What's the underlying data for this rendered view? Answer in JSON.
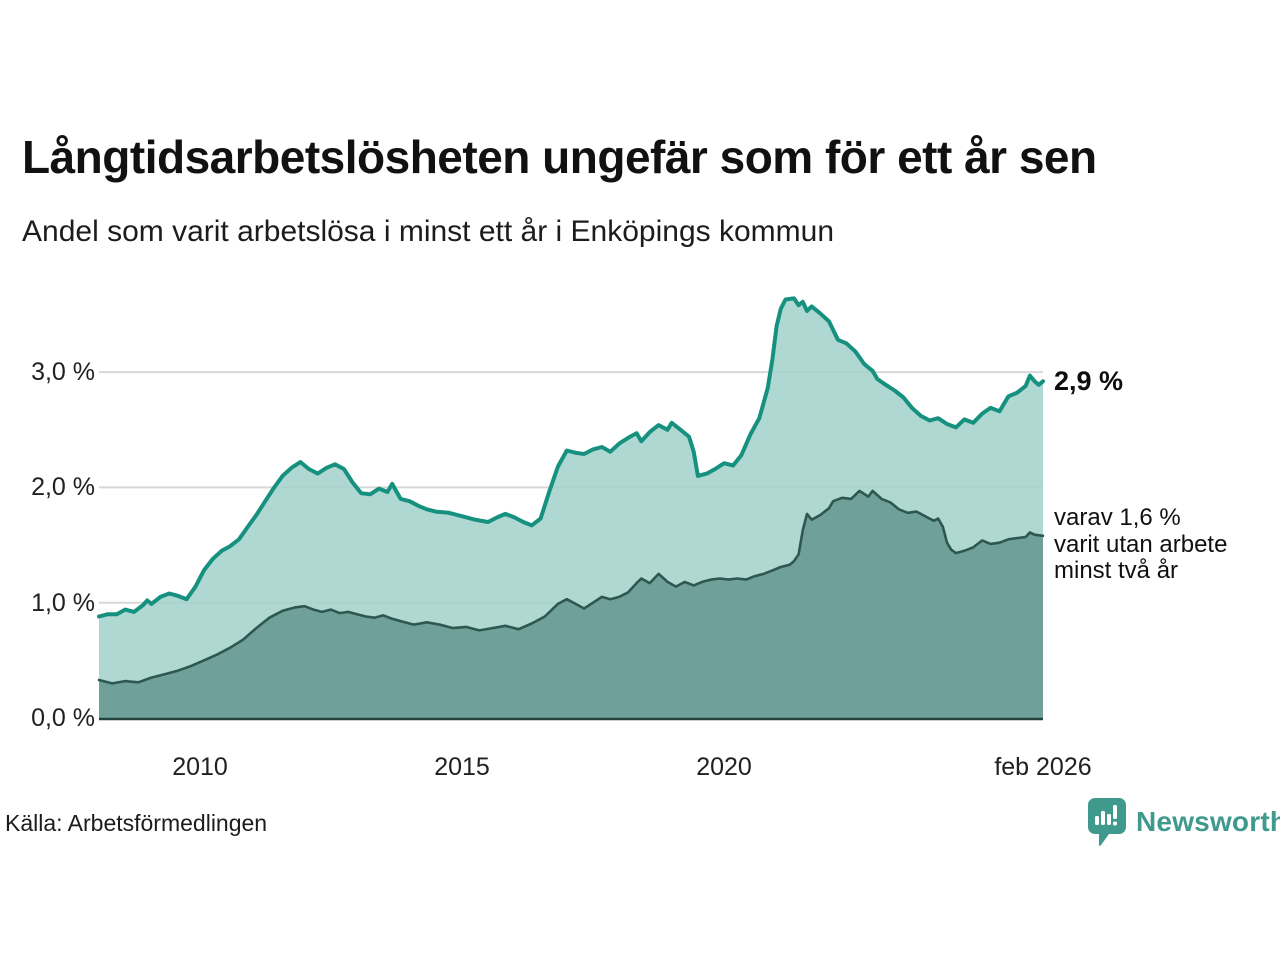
{
  "header": {
    "title": "Långtidsarbetslösheten ungefär som för ett år sen",
    "subtitle": "Andel som varit arbetslösa i minst ett år i Enköpings kommun"
  },
  "annotations": {
    "latest_value": "2,9 %",
    "two_year_note": "varav 1,6 %\nvarit utan arbete\nminst två år"
  },
  "footer": {
    "source": "Källa: Arbetsförmedlingen",
    "brand": "Newsworthy"
  },
  "chart_data": {
    "type": "area",
    "title": "Långtidsarbetslösheten ungefär som för ett år sen",
    "subtitle": "Andel som varit arbetslösa i minst ett år i Enköpings kommun",
    "unit": "%",
    "grid": "horizontal",
    "legend_position": "none",
    "x_range": [
      2008.08,
      2026.08
    ],
    "ylim": [
      0,
      3.85
    ],
    "colors": {
      "grid": "#d8d8d8",
      "baseline": "#24423c",
      "accent_teal": "#17917f",
      "brand_teal": "#3f998c"
    },
    "y_axis": {
      "ticks": [
        {
          "label": "0,0 %",
          "value": 0
        },
        {
          "label": "1,0 %",
          "value": 1
        },
        {
          "label": "2,0 %",
          "value": 2
        },
        {
          "label": "3,0 %",
          "value": 3
        }
      ]
    },
    "x_axis": {
      "ticks": [
        {
          "label": "2010",
          "value": 2010
        },
        {
          "label": "2015",
          "value": 2015
        },
        {
          "label": "2020",
          "value": 2020
        },
        {
          "label": "feb 2026",
          "value": 2026.08
        }
      ]
    },
    "series": [
      {
        "id": "unemployed_min_one_year",
        "end_label": "2,9 %",
        "line": "#17917f",
        "line_width": 4,
        "fill": "#a2d2ca",
        "fill_opacity": 0.87,
        "points": [
          [
            2008.08,
            0.88
          ],
          [
            2008.25,
            0.9
          ],
          [
            2008.42,
            0.9
          ],
          [
            2008.58,
            0.94
          ],
          [
            2008.75,
            0.92
          ],
          [
            2008.92,
            0.98
          ],
          [
            2009.0,
            1.02
          ],
          [
            2009.08,
            0.99
          ],
          [
            2009.25,
            1.05
          ],
          [
            2009.42,
            1.08
          ],
          [
            2009.58,
            1.06
          ],
          [
            2009.75,
            1.03
          ],
          [
            2009.92,
            1.14
          ],
          [
            2010.08,
            1.28
          ],
          [
            2010.25,
            1.38
          ],
          [
            2010.42,
            1.45
          ],
          [
            2010.58,
            1.49
          ],
          [
            2010.75,
            1.55
          ],
          [
            2010.92,
            1.66
          ],
          [
            2011.08,
            1.76
          ],
          [
            2011.25,
            1.88
          ],
          [
            2011.42,
            2.0
          ],
          [
            2011.58,
            2.1
          ],
          [
            2011.75,
            2.17
          ],
          [
            2011.92,
            2.22
          ],
          [
            2012.08,
            2.16
          ],
          [
            2012.25,
            2.12
          ],
          [
            2012.42,
            2.17
          ],
          [
            2012.58,
            2.2
          ],
          [
            2012.75,
            2.16
          ],
          [
            2012.92,
            2.04
          ],
          [
            2013.08,
            1.95
          ],
          [
            2013.25,
            1.94
          ],
          [
            2013.42,
            1.99
          ],
          [
            2013.58,
            1.96
          ],
          [
            2013.67,
            2.03
          ],
          [
            2013.83,
            1.9
          ],
          [
            2014.0,
            1.88
          ],
          [
            2014.17,
            1.84
          ],
          [
            2014.33,
            1.81
          ],
          [
            2014.5,
            1.79
          ],
          [
            2014.75,
            1.78
          ],
          [
            2015.0,
            1.75
          ],
          [
            2015.25,
            1.72
          ],
          [
            2015.5,
            1.7
          ],
          [
            2015.67,
            1.74
          ],
          [
            2015.83,
            1.77
          ],
          [
            2016.0,
            1.74
          ],
          [
            2016.17,
            1.7
          ],
          [
            2016.33,
            1.67
          ],
          [
            2016.5,
            1.73
          ],
          [
            2016.67,
            1.97
          ],
          [
            2016.83,
            2.18
          ],
          [
            2017.0,
            2.32
          ],
          [
            2017.17,
            2.3
          ],
          [
            2017.33,
            2.29
          ],
          [
            2017.5,
            2.33
          ],
          [
            2017.67,
            2.35
          ],
          [
            2017.83,
            2.31
          ],
          [
            2018.0,
            2.38
          ],
          [
            2018.17,
            2.43
          ],
          [
            2018.33,
            2.47
          ],
          [
            2018.42,
            2.4
          ],
          [
            2018.58,
            2.48
          ],
          [
            2018.75,
            2.54
          ],
          [
            2018.92,
            2.5
          ],
          [
            2019.0,
            2.56
          ],
          [
            2019.17,
            2.5
          ],
          [
            2019.33,
            2.44
          ],
          [
            2019.42,
            2.31
          ],
          [
            2019.5,
            2.1
          ],
          [
            2019.67,
            2.12
          ],
          [
            2019.83,
            2.16
          ],
          [
            2020.0,
            2.21
          ],
          [
            2020.17,
            2.19
          ],
          [
            2020.33,
            2.28
          ],
          [
            2020.5,
            2.46
          ],
          [
            2020.67,
            2.6
          ],
          [
            2020.83,
            2.86
          ],
          [
            2020.92,
            3.11
          ],
          [
            2021.0,
            3.4
          ],
          [
            2021.08,
            3.55
          ],
          [
            2021.17,
            3.63
          ],
          [
            2021.33,
            3.64
          ],
          [
            2021.42,
            3.58
          ],
          [
            2021.5,
            3.61
          ],
          [
            2021.58,
            3.53
          ],
          [
            2021.67,
            3.57
          ],
          [
            2021.83,
            3.51
          ],
          [
            2022.0,
            3.44
          ],
          [
            2022.17,
            3.28
          ],
          [
            2022.33,
            3.25
          ],
          [
            2022.5,
            3.18
          ],
          [
            2022.67,
            3.07
          ],
          [
            2022.83,
            3.01
          ],
          [
            2022.92,
            2.94
          ],
          [
            2023.08,
            2.89
          ],
          [
            2023.25,
            2.84
          ],
          [
            2023.42,
            2.78
          ],
          [
            2023.58,
            2.69
          ],
          [
            2023.75,
            2.62
          ],
          [
            2023.92,
            2.58
          ],
          [
            2024.08,
            2.6
          ],
          [
            2024.25,
            2.55
          ],
          [
            2024.42,
            2.52
          ],
          [
            2024.58,
            2.59
          ],
          [
            2024.75,
            2.56
          ],
          [
            2024.92,
            2.64
          ],
          [
            2025.08,
            2.69
          ],
          [
            2025.25,
            2.66
          ],
          [
            2025.42,
            2.79
          ],
          [
            2025.58,
            2.82
          ],
          [
            2025.75,
            2.88
          ],
          [
            2025.83,
            2.97
          ],
          [
            2025.92,
            2.92
          ],
          [
            2026.0,
            2.89
          ],
          [
            2026.08,
            2.92
          ]
        ]
      },
      {
        "id": "unemployed_min_two_years",
        "end_label": "varav 1,6 % varit utan arbete minst två år",
        "line": "#2e574f",
        "line_width": 2.6,
        "fill": "#649a92",
        "fill_opacity": 0.93,
        "points": [
          [
            2008.08,
            0.33
          ],
          [
            2008.33,
            0.3
          ],
          [
            2008.58,
            0.32
          ],
          [
            2008.83,
            0.31
          ],
          [
            2009.08,
            0.35
          ],
          [
            2009.33,
            0.38
          ],
          [
            2009.58,
            0.41
          ],
          [
            2009.83,
            0.45
          ],
          [
            2010.08,
            0.5
          ],
          [
            2010.33,
            0.55
          ],
          [
            2010.58,
            0.61
          ],
          [
            2010.83,
            0.68
          ],
          [
            2011.08,
            0.78
          ],
          [
            2011.33,
            0.87
          ],
          [
            2011.58,
            0.93
          ],
          [
            2011.83,
            0.96
          ],
          [
            2012.0,
            0.97
          ],
          [
            2012.17,
            0.94
          ],
          [
            2012.33,
            0.92
          ],
          [
            2012.5,
            0.94
          ],
          [
            2012.67,
            0.91
          ],
          [
            2012.83,
            0.92
          ],
          [
            2013.0,
            0.9
          ],
          [
            2013.17,
            0.88
          ],
          [
            2013.33,
            0.87
          ],
          [
            2013.5,
            0.89
          ],
          [
            2013.67,
            0.86
          ],
          [
            2013.83,
            0.84
          ],
          [
            2014.08,
            0.81
          ],
          [
            2014.33,
            0.83
          ],
          [
            2014.58,
            0.81
          ],
          [
            2014.83,
            0.78
          ],
          [
            2015.08,
            0.79
          ],
          [
            2015.33,
            0.76
          ],
          [
            2015.58,
            0.78
          ],
          [
            2015.83,
            0.8
          ],
          [
            2016.08,
            0.77
          ],
          [
            2016.33,
            0.82
          ],
          [
            2016.58,
            0.88
          ],
          [
            2016.83,
            0.99
          ],
          [
            2017.0,
            1.03
          ],
          [
            2017.17,
            0.99
          ],
          [
            2017.33,
            0.95
          ],
          [
            2017.5,
            1.0
          ],
          [
            2017.67,
            1.05
          ],
          [
            2017.83,
            1.03
          ],
          [
            2018.0,
            1.05
          ],
          [
            2018.17,
            1.09
          ],
          [
            2018.33,
            1.17
          ],
          [
            2018.42,
            1.21
          ],
          [
            2018.58,
            1.17
          ],
          [
            2018.75,
            1.25
          ],
          [
            2018.92,
            1.18
          ],
          [
            2019.08,
            1.14
          ],
          [
            2019.25,
            1.18
          ],
          [
            2019.42,
            1.15
          ],
          [
            2019.58,
            1.18
          ],
          [
            2019.75,
            1.2
          ],
          [
            2019.92,
            1.21
          ],
          [
            2020.08,
            1.2
          ],
          [
            2020.25,
            1.21
          ],
          [
            2020.42,
            1.2
          ],
          [
            2020.58,
            1.23
          ],
          [
            2020.75,
            1.25
          ],
          [
            2020.92,
            1.28
          ],
          [
            2021.08,
            1.31
          ],
          [
            2021.25,
            1.33
          ],
          [
            2021.33,
            1.36
          ],
          [
            2021.42,
            1.42
          ],
          [
            2021.5,
            1.63
          ],
          [
            2021.58,
            1.77
          ],
          [
            2021.67,
            1.72
          ],
          [
            2021.83,
            1.76
          ],
          [
            2022.0,
            1.82
          ],
          [
            2022.08,
            1.88
          ],
          [
            2022.25,
            1.91
          ],
          [
            2022.42,
            1.9
          ],
          [
            2022.58,
            1.97
          ],
          [
            2022.75,
            1.92
          ],
          [
            2022.83,
            1.97
          ],
          [
            2023.0,
            1.9
          ],
          [
            2023.17,
            1.87
          ],
          [
            2023.33,
            1.81
          ],
          [
            2023.5,
            1.78
          ],
          [
            2023.67,
            1.79
          ],
          [
            2023.83,
            1.75
          ],
          [
            2024.0,
            1.71
          ],
          [
            2024.08,
            1.73
          ],
          [
            2024.17,
            1.66
          ],
          [
            2024.25,
            1.52
          ],
          [
            2024.33,
            1.46
          ],
          [
            2024.42,
            1.43
          ],
          [
            2024.58,
            1.45
          ],
          [
            2024.75,
            1.48
          ],
          [
            2024.92,
            1.54
          ],
          [
            2025.08,
            1.51
          ],
          [
            2025.25,
            1.52
          ],
          [
            2025.42,
            1.55
          ],
          [
            2025.58,
            1.56
          ],
          [
            2025.75,
            1.57
          ],
          [
            2025.83,
            1.61
          ],
          [
            2025.92,
            1.59
          ],
          [
            2026.08,
            1.58
          ]
        ]
      }
    ]
  }
}
